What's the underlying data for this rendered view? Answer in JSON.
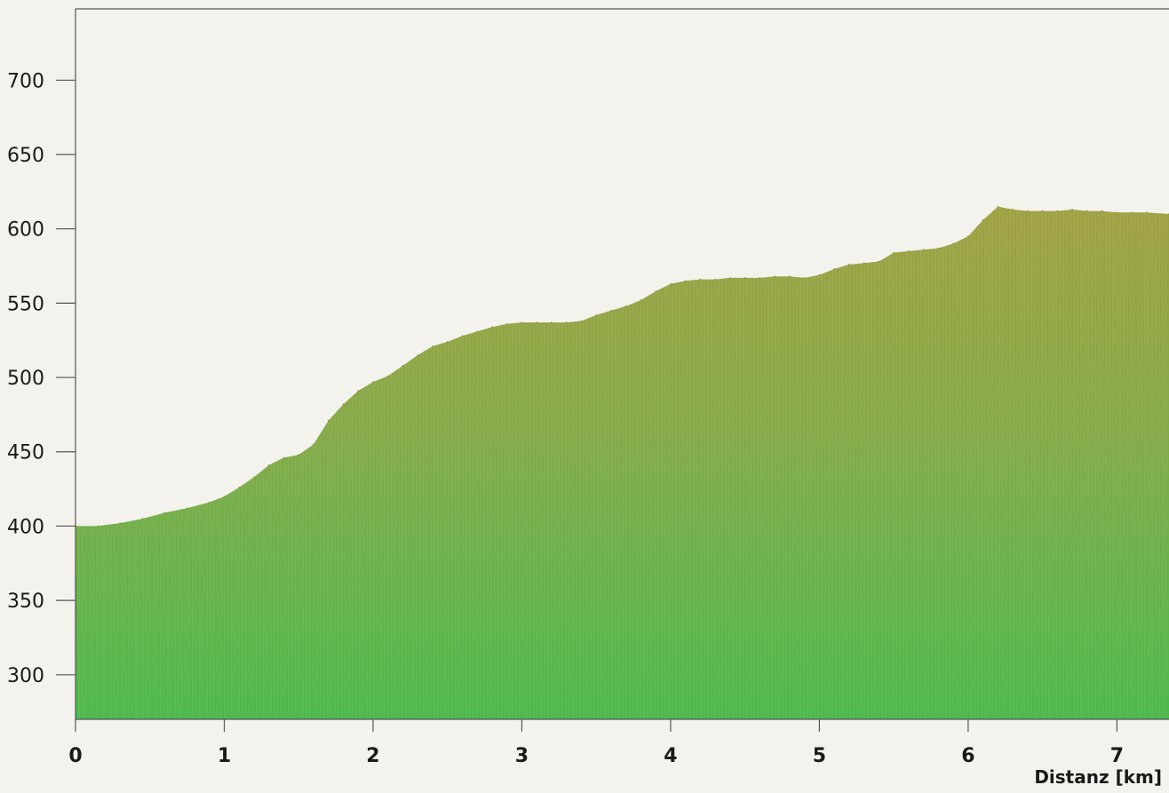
{
  "chart_data": {
    "type": "area",
    "title": "",
    "xlabel": "Distanz [km]",
    "ylabel": "",
    "xlim": [
      0,
      7.35
    ],
    "ylim": [
      270,
      748
    ],
    "x_ticks": [
      0,
      1,
      2,
      3,
      4,
      5,
      6,
      7
    ],
    "y_ticks": [
      300,
      350,
      400,
      450,
      500,
      550,
      600,
      650,
      700
    ],
    "grid": false,
    "legend": "none",
    "colors": {
      "fill_top": "#a0a042",
      "fill_bottom": "#4cb84c",
      "background": "#f4f2ec",
      "axis": "#555555"
    },
    "series": [
      {
        "x": [
          0,
          0.15,
          0.3,
          0.45,
          0.6,
          0.75,
          0.9,
          1.0,
          1.1,
          1.2,
          1.3,
          1.4,
          1.5,
          1.6,
          1.7,
          1.8,
          1.9,
          2.0,
          2.1,
          2.2,
          2.3,
          2.4,
          2.5,
          2.6,
          2.7,
          2.8,
          2.9,
          3.0,
          3.1,
          3.2,
          3.3,
          3.4,
          3.5,
          3.6,
          3.7,
          3.8,
          3.9,
          4.0,
          4.1,
          4.2,
          4.3,
          4.4,
          4.5,
          4.6,
          4.7,
          4.8,
          4.9,
          5.0,
          5.1,
          5.2,
          5.3,
          5.4,
          5.5,
          5.6,
          5.7,
          5.8,
          5.9,
          6.0,
          6.1,
          6.2,
          6.3,
          6.4,
          6.5,
          6.6,
          6.7,
          6.8,
          6.9,
          7.0,
          7.1,
          7.2,
          7.35
        ],
        "y": [
          400,
          400,
          402,
          405,
          409,
          412,
          416,
          420,
          426,
          433,
          441,
          446,
          448,
          455,
          471,
          482,
          491,
          497,
          501,
          508,
          515,
          521,
          524,
          528,
          531,
          534,
          536,
          537,
          537,
          537,
          537,
          538,
          542,
          545,
          548,
          552,
          558,
          563,
          565,
          566,
          566,
          567,
          567,
          567,
          568,
          568,
          567,
          569,
          573,
          576,
          577,
          578,
          584,
          585,
          586,
          587,
          590,
          595,
          606,
          615,
          613,
          612,
          612,
          612,
          613,
          612,
          612,
          611,
          611,
          611,
          610
        ]
      }
    ]
  }
}
